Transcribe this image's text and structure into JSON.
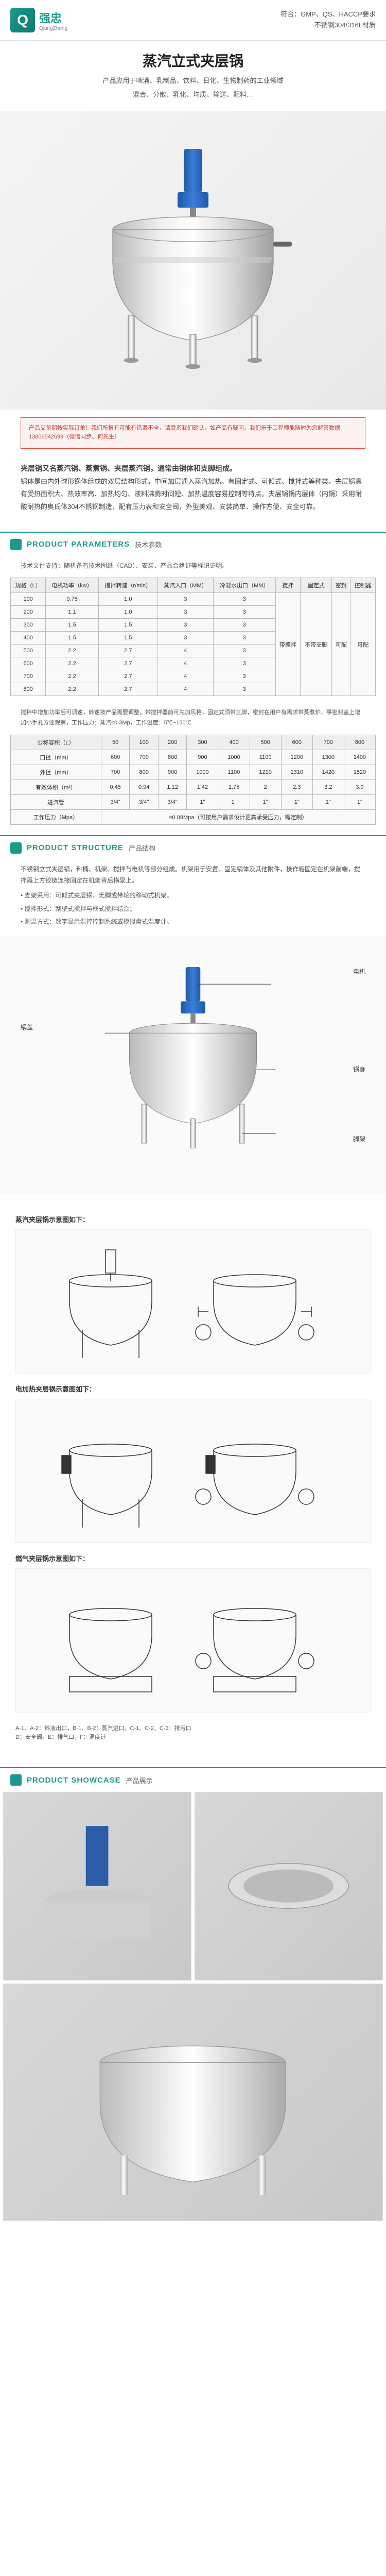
{
  "header": {
    "logo_cn": "强忠",
    "logo_en": "QiangZhong",
    "line1": "符合：GMP、QS、HACCP要求",
    "line2": "不锈钢304/316L材质"
  },
  "title": "蒸汽立式夹层锅",
  "sub1": "产品应用于啤酒、乳制品、饮料、日化、生物制药的工业领域",
  "sub2": "混合、分散、乳化、均质、输送、配料…",
  "alert": "产品交货期按实际订单！我们所报有可能有错漏不全，请联系我们确认，如产品有疑问，我们乐于工程师能随时为您解答数据 13806542699（微信同步、何先生）",
  "desc_bold": "夹层锅又名蒸汽锅、蒸煮锅、夹层蒸汽锅，通常由锅体和支脚组成。",
  "desc_body": "锅体是由内外球形锅体组成的双层结构形式，中间加层通入蒸汽加热。有固定式、可倾式、搅拌式等种类。夹层锅具有受热面积大、热效率高、加热均匀、液料沸腾时间短、加热温度容易控制等特点。夹层锅锅内层体（内锅）采用耐酸耐热的奥氏体304不锈钢制造，配有压力表和安全阀，外型美观、安装简单、操作方便、安全可靠。",
  "sections": {
    "params": {
      "en": "PRODUCT PARAMETERS",
      "cn": "技术参数"
    },
    "structure": {
      "en": "PRODUCT STRUCTURE",
      "cn": "产品结构"
    },
    "showcase": {
      "en": "PRODUCT SHOWCASE",
      "cn": "产品展示"
    }
  },
  "params_intro": "技术文件支持：随机备有技术图纸（CAD）、安装、产品合格证等标识证明。",
  "table1": {
    "headers": [
      "规格（L）",
      "电机功率（kw）",
      "搅拌转速（r/min）",
      "蒸汽入口（MM）",
      "冷凝水出口（MM）",
      "搅拌",
      "固定式",
      "密封",
      "控制器"
    ],
    "rows": [
      [
        "100",
        "0.75",
        "1.0",
        "3",
        "3",
        "带搅拌",
        "不带支脚",
        "可配",
        "可配"
      ],
      [
        "200",
        "1.1",
        "1.0",
        "3",
        "3",
        "",
        "",
        "",
        ""
      ],
      [
        "300",
        "1.5",
        "1.5",
        "3",
        "3",
        "",
        "",
        "",
        ""
      ],
      [
        "400",
        "1.5",
        "1.5",
        "3",
        "3",
        "",
        "",
        "",
        ""
      ],
      [
        "500",
        "2.2",
        "2.7",
        "4",
        "3",
        "",
        "",
        "",
        ""
      ],
      [
        "600",
        "2.2",
        "2.7",
        "4",
        "3",
        "",
        "",
        "",
        ""
      ],
      [
        "700",
        "2.2",
        "2.7",
        "4",
        "3",
        "",
        "",
        "",
        ""
      ],
      [
        "800",
        "2.2",
        "2.7",
        "4",
        "3",
        "",
        "",
        "",
        ""
      ]
    ],
    "note": "搅拌中增加功率后可调速，转速按产品需要调整，带搅拌器前可先加风格，固定式须带三脚，密封在用户有需求带蒸煮炉，事密封盖上增加小手孔方便观察，工作压力：蒸汽≤0.3Mp，工作温度：5℃~150℃"
  },
  "table2": {
    "headers": [
      "公称容积（L）",
      "50",
      "100",
      "200",
      "300",
      "400",
      "500",
      "600",
      "700",
      "800"
    ],
    "rows": [
      [
        "口径（mm）",
        "600",
        "700",
        "800",
        "900",
        "1000",
        "1100",
        "1200",
        "1300",
        "1400"
      ],
      [
        "外径（mm）",
        "700",
        "800",
        "900",
        "1000",
        "1100",
        "1210",
        "1310",
        "1420",
        "1520"
      ],
      [
        "有效体积（m³）",
        "0.45",
        "0.94",
        "1.12",
        "1.42",
        "1.75",
        "2",
        "2.3",
        "3.2",
        "3.9"
      ],
      [
        "进汽管",
        "3/4\"",
        "3/4\"",
        "3/4\"",
        "1\"",
        "1\"",
        "1\"",
        "1\"",
        "1\"",
        "1\""
      ],
      [
        "工作压力（Mpa）",
        "≤0.09Mpa（可按用户需求设计更高承受压力，需定制）"
      ]
    ]
  },
  "structure_intro": "不锈钢立式夹层锅，料桶、机架、搅拌与电机等部分组成。机架用于安置、固定锅体及其他附件，操作箱固定在机架前端，搅拌器上方铰链连接固定在机架背后横梁上。",
  "structure_list": [
    "支架采用：可倾式夹层锅，无脚或带轮的移动式机架。",
    "搅拌形式：刮壁式搅拌与框式搅拌结合；",
    "测温方式：数字显示温控控制系统或模拟盘式温度计。"
  ],
  "labels": {
    "motor": "电机",
    "body": "锅身",
    "lid": "锅盖",
    "frame": "脚架"
  },
  "diagram_titles": {
    "steam": "蒸汽夹层锅示意图如下：",
    "electric": "电加热夹层锅示意图如下：",
    "gas": "燃气夹层锅示意图如下："
  },
  "diagram_caption": "A-1、A-2：料液出口，B-1、B-2：蒸汽进口，C-1、C-2、C-3：排污口\nD：安全阀，E：排气口，F：温度计"
}
